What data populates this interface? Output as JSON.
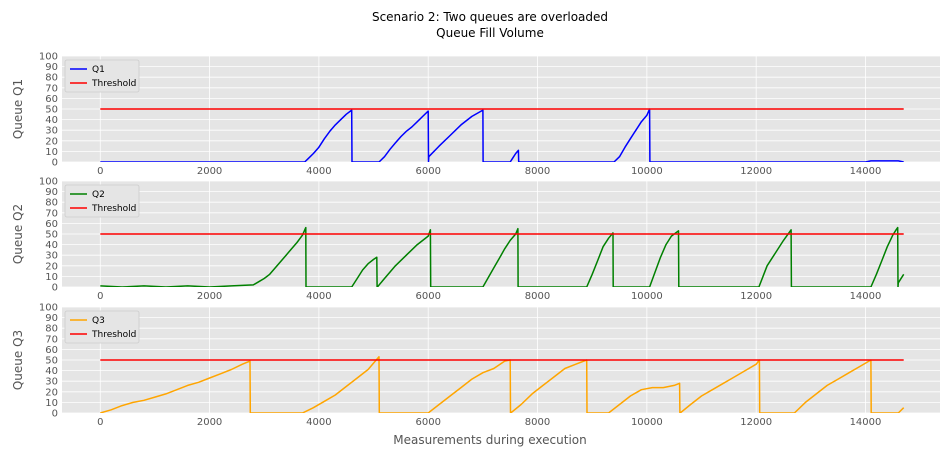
{
  "figure": {
    "title_line1": "Scenario 2: Two queues are overloaded",
    "title_line2": "Queue Fill Volume",
    "xlabel": "Measurements during execution"
  },
  "chart_data": [
    {
      "type": "line",
      "ylabel": "Queue Q1",
      "xlim": [
        -700,
        15400
      ],
      "ylim": [
        0,
        100
      ],
      "yticks": [
        0,
        10,
        20,
        30,
        40,
        50,
        60,
        70,
        80,
        90,
        100
      ],
      "xticks": [
        0,
        2000,
        4000,
        6000,
        8000,
        10000,
        12000,
        14000
      ],
      "show_xtick_labels": true,
      "grid": true,
      "legend_position": "top-left",
      "series": [
        {
          "name": "Q1",
          "color": "#0000ff",
          "x": [
            0,
            3740,
            3800,
            3900,
            4000,
            4100,
            4200,
            4300,
            4400,
            4500,
            4600,
            4605,
            4610,
            5100,
            5200,
            5300,
            5400,
            5500,
            5600,
            5700,
            5800,
            5900,
            6000,
            6005,
            6010,
            6200,
            6400,
            6600,
            6800,
            7000,
            7005,
            7010,
            7500,
            7550,
            7600,
            7650,
            7655,
            7660,
            9400,
            9500,
            9600,
            9700,
            9800,
            9900,
            10000,
            10050,
            10055,
            10060,
            14000,
            14100,
            14200,
            14300,
            14400,
            14500,
            14600,
            14700
          ],
          "y": [
            0,
            0,
            3,
            8,
            14,
            22,
            29,
            35,
            40,
            45,
            49,
            0,
            0,
            0,
            5,
            12,
            18,
            24,
            29,
            33,
            38,
            43,
            48,
            0,
            5,
            15,
            25,
            35,
            43,
            49,
            0,
            0,
            0,
            4,
            8,
            11,
            0,
            0,
            0,
            5,
            14,
            22,
            30,
            38,
            44,
            50,
            0,
            0,
            0,
            1,
            1,
            1,
            1,
            1,
            1,
            0
          ]
        },
        {
          "name": "Threshold",
          "color": "#ff0000",
          "x": [
            0,
            14700
          ],
          "y": [
            50,
            50
          ]
        }
      ]
    },
    {
      "type": "line",
      "ylabel": "Queue Q2",
      "xlim": [
        -700,
        15400
      ],
      "ylim": [
        0,
        100
      ],
      "yticks": [
        0,
        10,
        20,
        30,
        40,
        50,
        60,
        70,
        80,
        90,
        100
      ],
      "xticks": [
        0,
        2000,
        4000,
        6000,
        8000,
        10000,
        12000,
        14000
      ],
      "show_xtick_labels": true,
      "grid": true,
      "legend_position": "top-left",
      "series": [
        {
          "name": "Q2",
          "color": "#008000",
          "x": [
            0,
            400,
            800,
            1200,
            1600,
            2000,
            2400,
            2800,
            2900,
            3000,
            3100,
            3200,
            3300,
            3400,
            3500,
            3600,
            3700,
            3760,
            3765,
            3770,
            4600,
            4700,
            4800,
            4900,
            5000,
            5060,
            5065,
            5070,
            5200,
            5400,
            5600,
            5800,
            6000,
            6040,
            6045,
            6050,
            7000,
            7100,
            7200,
            7300,
            7400,
            7500,
            7600,
            7640,
            7645,
            7650,
            8900,
            9000,
            9100,
            9200,
            9300,
            9380,
            9385,
            9390,
            10050,
            10150,
            10250,
            10350,
            10450,
            10580,
            10585,
            10590,
            12050,
            12200,
            12350,
            12500,
            12640,
            12645,
            12650,
            14100,
            14200,
            14300,
            14400,
            14500,
            14560,
            14590,
            14595,
            14600,
            14700
          ],
          "y": [
            1,
            0,
            1,
            0,
            1,
            0,
            1,
            2,
            5,
            8,
            12,
            18,
            24,
            30,
            36,
            42,
            49,
            56,
            0,
            0,
            0,
            8,
            16,
            22,
            26,
            28,
            0,
            0,
            8,
            20,
            30,
            40,
            48,
            54,
            0,
            0,
            0,
            9,
            18,
            27,
            36,
            44,
            50,
            55,
            0,
            0,
            0,
            12,
            25,
            38,
            46,
            51,
            0,
            0,
            0,
            14,
            28,
            40,
            48,
            53,
            0,
            0,
            0,
            20,
            32,
            44,
            54,
            0,
            0,
            0,
            12,
            25,
            38,
            49,
            54,
            56,
            0,
            4,
            12
          ]
        },
        {
          "name": "Threshold",
          "color": "#ff0000",
          "x": [
            0,
            14700
          ],
          "y": [
            50,
            50
          ]
        }
      ]
    },
    {
      "type": "line",
      "ylabel": "Queue Q3",
      "xlim": [
        -700,
        15400
      ],
      "ylim": [
        0,
        100
      ],
      "yticks": [
        0,
        10,
        20,
        30,
        40,
        50,
        60,
        70,
        80,
        90,
        100
      ],
      "xticks": [
        0,
        2000,
        4000,
        6000,
        8000,
        10000,
        12000,
        14000
      ],
      "show_xtick_labels": true,
      "grid": true,
      "legend_position": "top-left",
      "series": [
        {
          "name": "Q3",
          "color": "#ffa500",
          "x": [
            0,
            200,
            400,
            600,
            800,
            1000,
            1200,
            1400,
            1600,
            1800,
            2000,
            2200,
            2400,
            2600,
            2740,
            2745,
            2750,
            3700,
            3900,
            4100,
            4300,
            4500,
            4700,
            4900,
            5100,
            5105,
            5110,
            6000,
            6200,
            6400,
            6600,
            6800,
            7000,
            7200,
            7400,
            7500,
            7505,
            7510,
            7700,
            7900,
            8100,
            8300,
            8500,
            8700,
            8900,
            8905,
            8910,
            9300,
            9500,
            9700,
            9900,
            10100,
            10300,
            10500,
            10600,
            10605,
            10610,
            10800,
            11000,
            11200,
            11400,
            11600,
            11800,
            12000,
            12060,
            12065,
            12070,
            12700,
            12900,
            13100,
            13300,
            13500,
            13700,
            13900,
            14100,
            14105,
            14110,
            14600,
            14700
          ],
          "y": [
            0,
            3,
            7,
            10,
            12,
            15,
            18,
            22,
            26,
            29,
            33,
            37,
            41,
            46,
            49,
            0,
            0,
            0,
            5,
            11,
            17,
            25,
            33,
            41,
            53,
            0,
            0,
            0,
            8,
            16,
            24,
            32,
            38,
            42,
            49,
            50,
            0,
            0,
            8,
            18,
            26,
            34,
            42,
            46,
            50,
            0,
            0,
            0,
            8,
            16,
            22,
            24,
            24,
            26,
            28,
            0,
            0,
            8,
            16,
            22,
            28,
            34,
            40,
            46,
            50,
            0,
            0,
            0,
            10,
            18,
            26,
            32,
            38,
            44,
            50,
            0,
            0,
            0,
            5
          ]
        },
        {
          "name": "Threshold",
          "color": "#ff0000",
          "x": [
            0,
            14700
          ],
          "y": [
            50,
            50
          ]
        }
      ]
    }
  ]
}
